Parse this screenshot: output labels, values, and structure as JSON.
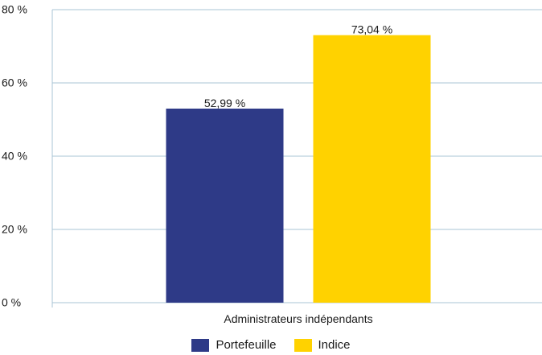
{
  "chart_data": {
    "type": "bar",
    "categories": [
      "Administrateurs indépendants"
    ],
    "series": [
      {
        "name": "Portefeuille",
        "values": [
          52.99
        ],
        "label": "52,99 %",
        "color": "#2e3a87"
      },
      {
        "name": "Indice",
        "values": [
          73.04
        ],
        "label": "73,04 %",
        "color": "#ffd200"
      }
    ],
    "ylim": [
      0,
      80
    ],
    "yticks": [
      {
        "value": 0,
        "label": "0 %"
      },
      {
        "value": 20,
        "label": "20 %"
      },
      {
        "value": 40,
        "label": "40 %"
      },
      {
        "value": 60,
        "label": "60 %"
      },
      {
        "value": 80,
        "label": "80 %"
      }
    ],
    "gridlines": true,
    "gridline_color": "#a9c4d6",
    "legend_position": "bottom"
  }
}
